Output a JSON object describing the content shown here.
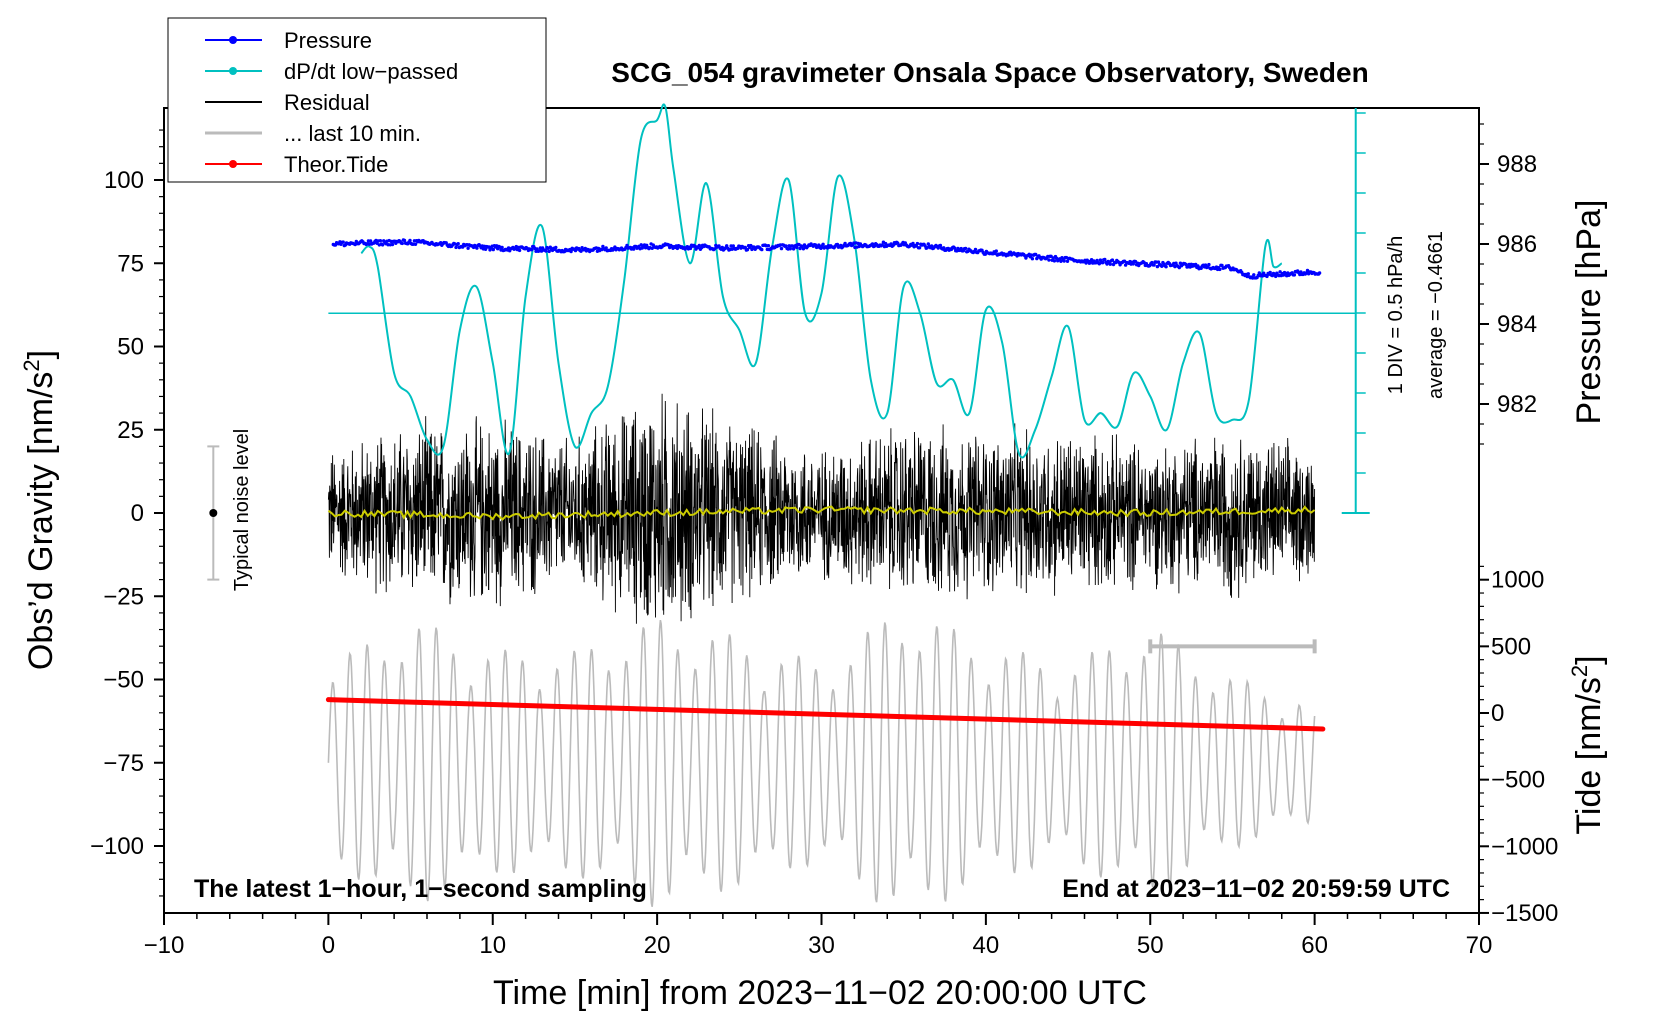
{
  "chart_data": {
    "type": "line",
    "title": "SCG_054 gravimeter Onsala Space Observatory, Sweden",
    "xlabel": "Time [min] from 2023−11−02 20:00:00 UTC",
    "ylabel_left": "Obs’d Gravity [nm/s",
    "ylabel_left_sup": "2",
    "ylabel_left_close": "]",
    "ylabel_right_pressure": "Pressure [hPa]",
    "ylabel_right_tide": "Tide [nm/s",
    "ylabel_right_tide_sup": "2",
    "ylabel_right_tide_close": "]",
    "xlim": [
      -10,
      70
    ],
    "ylim_gravity": [
      -120,
      120
    ],
    "pressure_ylim_ticks": [
      982,
      988
    ],
    "x_ticks": [
      -10,
      0,
      10,
      20,
      30,
      40,
      50,
      60,
      70
    ],
    "x_tick_labels": [
      "−10",
      "0",
      "10",
      "20",
      "30",
      "40",
      "50",
      "60",
      "70"
    ],
    "y_left_ticks": [
      100,
      75,
      50,
      25,
      0,
      -25,
      -50,
      -75,
      -100
    ],
    "y_left_tick_labels": [
      "100",
      "75",
      "50",
      "25",
      "0",
      "−25",
      "−50",
      "−75",
      "−100"
    ],
    "y_pressure_ticks": [
      988,
      986,
      984,
      982
    ],
    "y_pressure_tick_labels": [
      "988",
      "986",
      "984",
      "982"
    ],
    "y_tide_ticks": [
      1000,
      500,
      0,
      -500,
      -1000,
      -1500
    ],
    "y_tide_tick_labels": [
      "1000",
      "500",
      "0",
      "−500",
      "−1000",
      "−1500"
    ],
    "legend": [
      {
        "label": "Pressure",
        "color": "#0000ff",
        "marker": true
      },
      {
        "label": "dP/dt low−passed",
        "color": "#00c0c0",
        "marker": true
      },
      {
        "label": "Residual",
        "color": "#000000",
        "marker": false
      },
      {
        "label": "... last 10 min.",
        "color": "#bbbbbb",
        "marker": false
      },
      {
        "label": "Theor.Tide",
        "color": "#ff0000",
        "marker": true
      }
    ],
    "legend_position": "top-left",
    "annotations": {
      "bottom_left": "The latest 1−hour, 1−second sampling",
      "bottom_right": "End at 2023−11−02 20:59:59 UTC",
      "noise_label": "Typical noise level",
      "div_label": "1 DIV = 0.5 hPa/h",
      "average_label": "average = −0.4661"
    },
    "noise_level": {
      "x": -7,
      "center": 0,
      "half_range": 20
    },
    "last10_bar": {
      "x_start": 50,
      "x_end": 60,
      "tide_value": 500
    },
    "series": [
      {
        "name": "Pressure",
        "units": "hPa",
        "color": "#0000ff",
        "x": [
          0,
          5,
          10,
          15,
          20,
          25,
          30,
          35,
          40,
          45,
          50,
          55,
          56,
          60
        ],
        "values": [
          986.0,
          986.05,
          985.9,
          985.85,
          985.95,
          985.9,
          985.95,
          986.0,
          985.8,
          985.6,
          985.5,
          985.4,
          985.2,
          985.3
        ]
      },
      {
        "name": "dP/dt low-passed",
        "units": "relative gravity-scale position",
        "color": "#00c0c0",
        "baseline": 60,
        "x": [
          2,
          2.5,
          3,
          4,
          5,
          6,
          7,
          8,
          9,
          10,
          11,
          12,
          13,
          14,
          15,
          16,
          17,
          18,
          19,
          20,
          20.5,
          21,
          22,
          23,
          24,
          25,
          26,
          27,
          28,
          29,
          30,
          31,
          32,
          33,
          34,
          35,
          36,
          37,
          38,
          39,
          40,
          41,
          42,
          43,
          44,
          45,
          46,
          47,
          48,
          49,
          50,
          51,
          52,
          53,
          54,
          55,
          56,
          57,
          57.5,
          58
        ],
        "values": [
          78,
          80,
          74,
          42,
          35,
          22,
          20,
          55,
          68,
          45,
          18,
          65,
          86,
          45,
          20,
          30,
          38,
          70,
          112,
          118,
          122,
          103,
          75,
          99,
          65,
          55,
          45,
          80,
          100,
          60,
          66,
          101,
          82,
          40,
          30,
          68,
          60,
          39,
          40,
          30,
          61,
          51,
          18,
          25,
          41,
          56,
          28,
          30,
          26,
          42,
          35,
          25,
          45,
          54,
          30,
          28,
          34,
          80,
          74,
          75
        ]
      },
      {
        "name": "Residual",
        "units": "nm/s2",
        "color": "#000000",
        "envelope_x": [
          0,
          5,
          10,
          15,
          20,
          25,
          30,
          35,
          40,
          45,
          50,
          55,
          60
        ],
        "envelope_amplitude": [
          22,
          30,
          32,
          25,
          42,
          30,
          22,
          30,
          28,
          28,
          24,
          28,
          22
        ]
      },
      {
        "name": "Residual smoothed",
        "units": "nm/s2",
        "color": "#cccc00",
        "x": [
          0,
          10,
          20,
          30,
          40,
          50,
          60
        ],
        "values": [
          0,
          -1,
          0,
          1,
          0.5,
          0,
          1
        ]
      },
      {
        "name": "... last 10 min.",
        "units": "nm/s2",
        "color": "#bbbbbb",
        "envelope_x": [
          0,
          5,
          10,
          15,
          20,
          25,
          30,
          35,
          40,
          45,
          50,
          55,
          60
        ],
        "envelope_amplitude": [
          30,
          44,
          34,
          34,
          44,
          38,
          30,
          48,
          36,
          30,
          42,
          26,
          18
        ],
        "center": -75
      },
      {
        "name": "Theor.Tide",
        "units": "nm/s2 (tide axis)",
        "color": "#ff0000",
        "x": [
          0,
          60.5
        ],
        "values": [
          100,
          -120
        ]
      }
    ]
  }
}
